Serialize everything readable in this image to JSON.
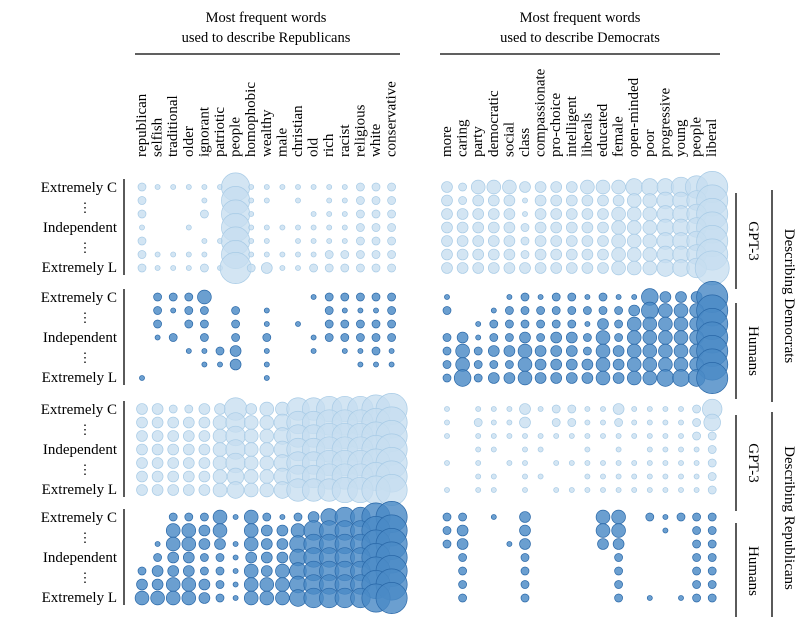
{
  "chart_data": {
    "type": "bubble-matrix",
    "panel_titles": {
      "left": [
        "Most frequent words",
        "used to describe Republicans"
      ],
      "right": [
        "Most frequent words",
        "used to describe Democrats"
      ]
    },
    "row_labels": [
      "Extremely C",
      "⋮",
      "Independent",
      "⋮",
      "Extremely L"
    ],
    "left_words": [
      "republican",
      "selfish",
      "traditional",
      "older",
      "ignorant",
      "patriotic",
      "people",
      "homophobic",
      "wealthy",
      "male",
      "christian",
      "old",
      "rich",
      "racist",
      "religious",
      "white",
      "conservative"
    ],
    "right_words": [
      "more",
      "caring",
      "party",
      "democratic",
      "social",
      "class",
      "compassionate",
      "pro-choice",
      "intelligent",
      "liberals",
      "educated",
      "female",
      "open-minded",
      "poor",
      "progressive",
      "young",
      "people",
      "liberal"
    ],
    "outer_labels": [
      "Describing Democrats",
      "Describing Republicans"
    ],
    "inner_labels": [
      "GPT-3",
      "Humans",
      "GPT-3",
      "Humans"
    ],
    "colors": {
      "gpt3": "#c6def0",
      "gpt3_edge": "#a8cbe6",
      "humans": "#4a8ac6",
      "humans_edge": "#2a68a8"
    },
    "ideology_levels": 7,
    "blocks": [
      {
        "name": "Describing Democrats - GPT-3",
        "left": [
          [
            2,
            1,
            1,
            1,
            1,
            1,
            9,
            1,
            1,
            1,
            1,
            1,
            1,
            1,
            2,
            2,
            2
          ],
          [
            2,
            0,
            0,
            0,
            1,
            0,
            9,
            1,
            1,
            0,
            1,
            0,
            1,
            1,
            2,
            2,
            2
          ],
          [
            2,
            0,
            0,
            0,
            2,
            0,
            9,
            1,
            0,
            0,
            0,
            1,
            1,
            1,
            2,
            2,
            2
          ],
          [
            1,
            0,
            0,
            1,
            0,
            0,
            9,
            1,
            1,
            1,
            1,
            1,
            1,
            1,
            2,
            2,
            2
          ],
          [
            2,
            0,
            0,
            0,
            1,
            1,
            9,
            1,
            1,
            0,
            1,
            1,
            1,
            1,
            2,
            2,
            2
          ],
          [
            2,
            1,
            1,
            1,
            1,
            0,
            9,
            1,
            1,
            1,
            1,
            1,
            2,
            2,
            2,
            2,
            2
          ],
          [
            2,
            1,
            1,
            1,
            2,
            1,
            10,
            2,
            3,
            1,
            1,
            2,
            2,
            2,
            2,
            2,
            2
          ]
        ],
        "right": [
          [
            3,
            2,
            4,
            4,
            4,
            3,
            3,
            3,
            3,
            4,
            4,
            4,
            5,
            5,
            5,
            6,
            7,
            10
          ],
          [
            3,
            2,
            3,
            3,
            3,
            1,
            3,
            3,
            3,
            3,
            3,
            3,
            4,
            4,
            5,
            5,
            6,
            10
          ],
          [
            3,
            3,
            3,
            3,
            3,
            1,
            3,
            3,
            3,
            3,
            3,
            4,
            4,
            4,
            5,
            5,
            6,
            10
          ],
          [
            3,
            3,
            3,
            3,
            3,
            2,
            3,
            3,
            3,
            3,
            3,
            4,
            4,
            4,
            5,
            5,
            6,
            10
          ],
          [
            3,
            3,
            3,
            3,
            3,
            2,
            3,
            3,
            3,
            3,
            3,
            4,
            4,
            4,
            5,
            5,
            6,
            10
          ],
          [
            3,
            3,
            3,
            3,
            3,
            2,
            3,
            3,
            3,
            3,
            3,
            4,
            4,
            4,
            5,
            5,
            6,
            10
          ],
          [
            3,
            3,
            3,
            3,
            3,
            3,
            3,
            3,
            3,
            3,
            3,
            4,
            4,
            4,
            5,
            5,
            6,
            11
          ]
        ]
      },
      {
        "name": "Describing Democrats - Humans",
        "left": [
          [
            0,
            2,
            2,
            2,
            4,
            0,
            0,
            0,
            0,
            0,
            0,
            1,
            2,
            2,
            2,
            2,
            2
          ],
          [
            0,
            2,
            1,
            2,
            2,
            0,
            2,
            0,
            1,
            0,
            0,
            0,
            2,
            1,
            1,
            1,
            2
          ],
          [
            0,
            2,
            0,
            2,
            2,
            0,
            2,
            0,
            1,
            0,
            1,
            0,
            2,
            2,
            2,
            2,
            2
          ],
          [
            0,
            1,
            2,
            0,
            2,
            0,
            2,
            0,
            2,
            0,
            0,
            1,
            2,
            2,
            2,
            2,
            2
          ],
          [
            0,
            0,
            0,
            1,
            1,
            2,
            3,
            0,
            1,
            0,
            0,
            1,
            0,
            1,
            1,
            2,
            1
          ],
          [
            0,
            0,
            0,
            0,
            1,
            1,
            3,
            0,
            1,
            0,
            0,
            0,
            0,
            0,
            1,
            1,
            1
          ],
          [
            1,
            0,
            0,
            0,
            0,
            0,
            0,
            0,
            1,
            0,
            0,
            0,
            0,
            0,
            0,
            0,
            0
          ]
        ],
        "right": [
          [
            1,
            0,
            0,
            0,
            1,
            2,
            1,
            2,
            2,
            1,
            2,
            1,
            1,
            5,
            3,
            3,
            3,
            10
          ],
          [
            2,
            0,
            0,
            1,
            2,
            2,
            2,
            2,
            2,
            2,
            2,
            2,
            3,
            5,
            4,
            4,
            4,
            10
          ],
          [
            0,
            0,
            1,
            2,
            2,
            2,
            2,
            2,
            2,
            1,
            3,
            2,
            4,
            4,
            4,
            4,
            4,
            10
          ],
          [
            2,
            3,
            1,
            2,
            2,
            3,
            2,
            3,
            3,
            2,
            4,
            2,
            4,
            4,
            4,
            4,
            4,
            10
          ],
          [
            2,
            4,
            2,
            3,
            3,
            4,
            3,
            3,
            3,
            2,
            4,
            3,
            4,
            4,
            4,
            4,
            4,
            10
          ],
          [
            2,
            4,
            2,
            2,
            2,
            4,
            3,
            3,
            3,
            3,
            4,
            3,
            4,
            4,
            4,
            4,
            4,
            10
          ],
          [
            2,
            5,
            2,
            3,
            3,
            4,
            3,
            3,
            3,
            3,
            4,
            3,
            4,
            4,
            5,
            5,
            5,
            10
          ]
        ]
      },
      {
        "name": "Describing Republicans - GPT-3",
        "left": [
          [
            3,
            3,
            2,
            2,
            3,
            3,
            7,
            3,
            4,
            4,
            7,
            7,
            8,
            8,
            8,
            9,
            10
          ],
          [
            3,
            3,
            3,
            3,
            3,
            4,
            6,
            4,
            4,
            5,
            7,
            7,
            8,
            8,
            8,
            9,
            10
          ],
          [
            3,
            3,
            3,
            3,
            3,
            4,
            6,
            4,
            4,
            5,
            7,
            7,
            8,
            8,
            8,
            9,
            10
          ],
          [
            3,
            3,
            3,
            3,
            3,
            4,
            6,
            4,
            4,
            5,
            7,
            7,
            8,
            8,
            8,
            9,
            10
          ],
          [
            3,
            3,
            3,
            3,
            3,
            4,
            6,
            4,
            4,
            5,
            7,
            7,
            8,
            8,
            8,
            9,
            10
          ],
          [
            3,
            3,
            3,
            3,
            3,
            4,
            5,
            4,
            4,
            5,
            7,
            7,
            8,
            8,
            8,
            9,
            10
          ],
          [
            3,
            3,
            3,
            3,
            3,
            4,
            5,
            4,
            4,
            5,
            7,
            7,
            7,
            8,
            8,
            9,
            10
          ]
        ],
        "right": [
          [
            1,
            0,
            1,
            1,
            1,
            3,
            1,
            2,
            2,
            1,
            1,
            3,
            1,
            1,
            1,
            1,
            2,
            6
          ],
          [
            1,
            0,
            2,
            1,
            1,
            3,
            0,
            2,
            2,
            1,
            1,
            2,
            1,
            1,
            1,
            1,
            2,
            5
          ],
          [
            1,
            0,
            1,
            1,
            1,
            1,
            1,
            1,
            1,
            1,
            1,
            1,
            1,
            1,
            1,
            1,
            2,
            2
          ],
          [
            0,
            0,
            1,
            1,
            0,
            1,
            1,
            0,
            0,
            1,
            0,
            1,
            0,
            1,
            1,
            1,
            1,
            2
          ],
          [
            1,
            0,
            1,
            0,
            1,
            1,
            0,
            1,
            1,
            1,
            1,
            1,
            1,
            1,
            1,
            1,
            1,
            2
          ],
          [
            0,
            0,
            1,
            1,
            0,
            1,
            1,
            0,
            0,
            1,
            1,
            1,
            1,
            1,
            1,
            1,
            1,
            2
          ],
          [
            1,
            0,
            1,
            1,
            0,
            1,
            0,
            1,
            1,
            1,
            1,
            1,
            1,
            1,
            1,
            1,
            1,
            2
          ]
        ]
      },
      {
        "name": "Describing Republicans - Humans",
        "left": [
          [
            0,
            0,
            2,
            2,
            2,
            4,
            1,
            4,
            2,
            1,
            2,
            3,
            5,
            6,
            6,
            9,
            10
          ],
          [
            0,
            0,
            4,
            4,
            3,
            4,
            0,
            4,
            3,
            3,
            4,
            6,
            6,
            6,
            6,
            9,
            10
          ],
          [
            0,
            1,
            4,
            4,
            3,
            3,
            1,
            4,
            3,
            3,
            5,
            6,
            6,
            6,
            6,
            9,
            10
          ],
          [
            0,
            2,
            3,
            3,
            2,
            2,
            1,
            3,
            3,
            3,
            5,
            6,
            6,
            6,
            6,
            9,
            10
          ],
          [
            2,
            3,
            3,
            3,
            2,
            2,
            1,
            4,
            3,
            4,
            5,
            6,
            6,
            6,
            6,
            9,
            10
          ],
          [
            3,
            3,
            4,
            4,
            3,
            2,
            1,
            4,
            4,
            4,
            5,
            6,
            6,
            6,
            6,
            9,
            10
          ],
          [
            4,
            4,
            4,
            4,
            3,
            2,
            1,
            4,
            4,
            4,
            5,
            6,
            6,
            6,
            6,
            9,
            10
          ]
        ],
        "right": [
          [
            2,
            2,
            0,
            1,
            0,
            3,
            0,
            0,
            0,
            0,
            4,
            4,
            0,
            2,
            1,
            2,
            2,
            2
          ],
          [
            2,
            3,
            0,
            0,
            0,
            3,
            0,
            0,
            0,
            0,
            4,
            4,
            0,
            0,
            1,
            0,
            2,
            2
          ],
          [
            2,
            3,
            0,
            0,
            1,
            3,
            0,
            0,
            0,
            0,
            3,
            3,
            0,
            0,
            0,
            0,
            2,
            2
          ],
          [
            0,
            2,
            0,
            0,
            0,
            2,
            0,
            0,
            0,
            0,
            0,
            2,
            0,
            0,
            0,
            0,
            2,
            2
          ],
          [
            0,
            2,
            0,
            0,
            0,
            2,
            0,
            0,
            0,
            0,
            0,
            2,
            0,
            0,
            0,
            0,
            2,
            2
          ],
          [
            0,
            2,
            0,
            0,
            0,
            2,
            0,
            0,
            0,
            0,
            0,
            2,
            0,
            0,
            0,
            0,
            2,
            2
          ],
          [
            0,
            2,
            0,
            0,
            0,
            2,
            0,
            0,
            0,
            0,
            0,
            2,
            0,
            1,
            0,
            1,
            2,
            2
          ]
        ]
      }
    ]
  }
}
